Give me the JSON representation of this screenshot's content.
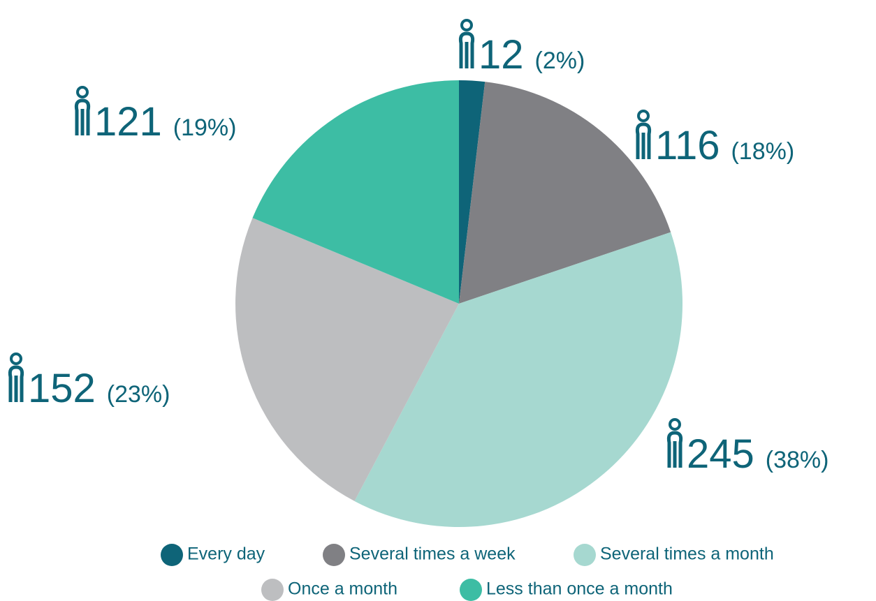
{
  "chart_data": {
    "type": "pie",
    "categories": [
      "Every day",
      "Several times a week",
      "Several times a month",
      "Once a month",
      "Less than once a month"
    ],
    "values": [
      12,
      116,
      245,
      152,
      121
    ],
    "percent_labels": [
      "(2%)",
      "(18%)",
      "(38%)",
      "(23%)",
      "(19%)"
    ],
    "colors": [
      "#0e6478",
      "#808084",
      "#a6d8d0",
      "#bdbec0",
      "#3dbda4"
    ],
    "legend": "bottom"
  }
}
